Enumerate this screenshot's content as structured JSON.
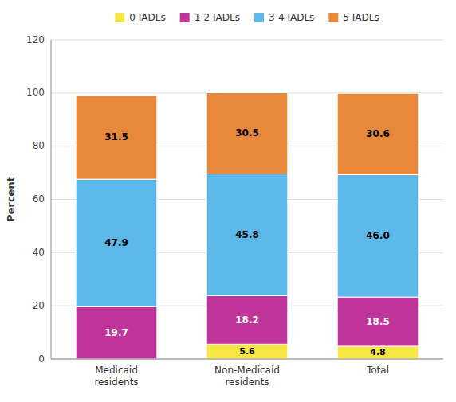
{
  "chart_data": {
    "type": "bar",
    "stacked": true,
    "data_labels": true,
    "grid": true,
    "legend": "top",
    "y_label": "Percent",
    "categories": [
      "Medicaid\nresidents",
      "Non-Medicaid\nresidents",
      "Total"
    ],
    "series": [
      {
        "name": "0 IADLs",
        "color": "#F5E642",
        "values": [
          0.0,
          5.6,
          4.8
        ]
      },
      {
        "name": "1-2 IADLs",
        "color": "#C0359A",
        "values": [
          19.7,
          18.2,
          18.5
        ]
      },
      {
        "name": "3-4 IADLs",
        "color": "#5BB8E8",
        "values": [
          47.9,
          45.8,
          46.0
        ],
        "value_labels": [
          "47.9",
          "45.8",
          "46.0"
        ]
      },
      {
        "name": "5 IADLs",
        "color": "#E8883A",
        "values": [
          31.5,
          30.5,
          30.6
        ]
      }
    ],
    "ylim": [
      0,
      120
    ],
    "yticks": [
      0,
      20,
      40,
      60,
      80,
      100,
      120
    ]
  }
}
